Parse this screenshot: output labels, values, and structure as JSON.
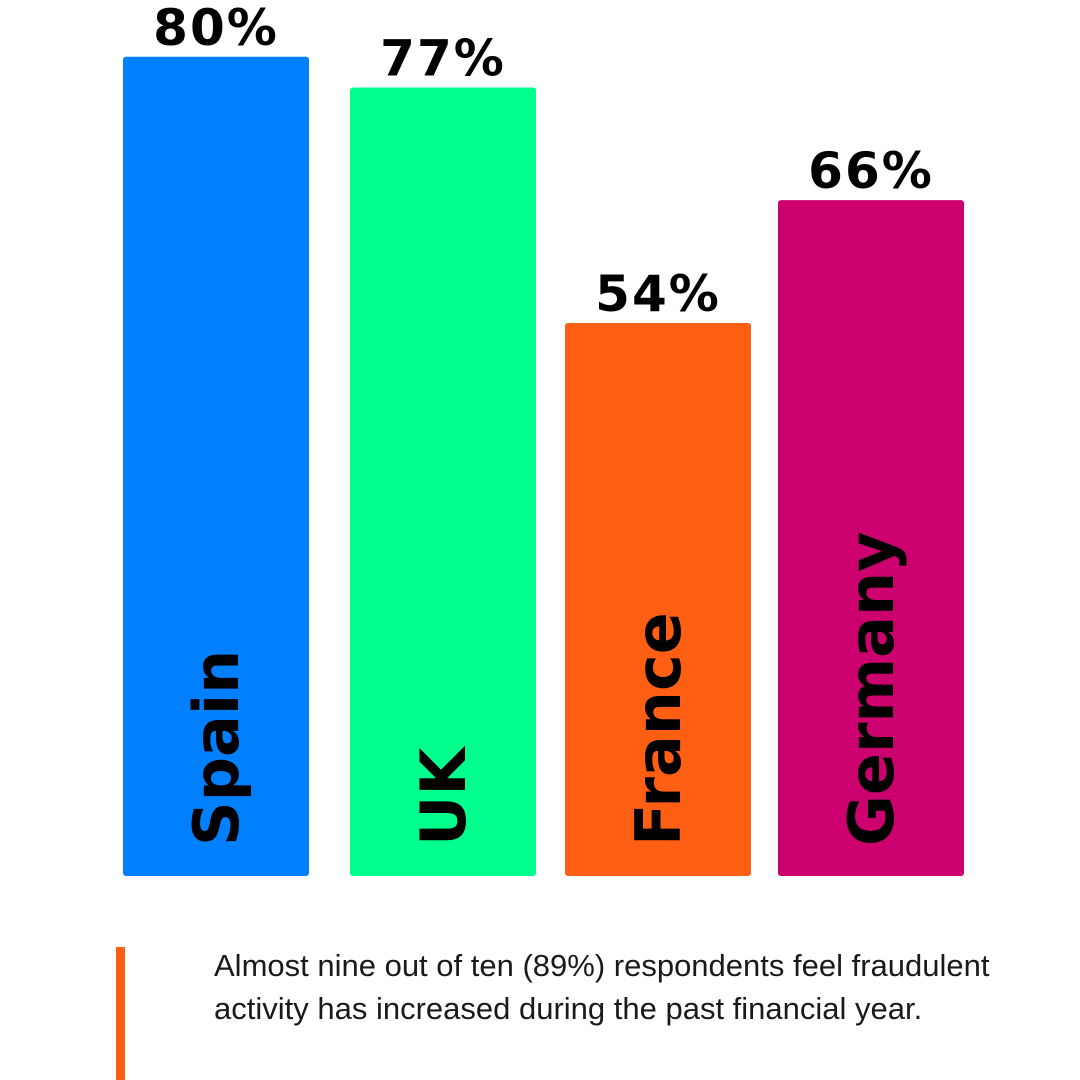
{
  "chart_data": {
    "type": "bar",
    "categories": [
      "Spain",
      "UK",
      "France",
      "Germany"
    ],
    "values": [
      80,
      77,
      54,
      66
    ],
    "value_labels": [
      "80%",
      "77%",
      "54%",
      "66%"
    ],
    "colors": [
      "#0080FF",
      "#00FF8C",
      "#FF5F12",
      "#CC006E"
    ],
    "category_label_orientation": "vertical-inside-bar",
    "value_label_position": "above-bar",
    "grid": false,
    "legend": "none",
    "title": "",
    "xlabel": "",
    "ylabel": ""
  },
  "footnote": {
    "text": "Almost nine out of ten (89%) respondents feel fraudulent activity has increased during the past financial year.",
    "accent_color": "#FF5F12"
  }
}
